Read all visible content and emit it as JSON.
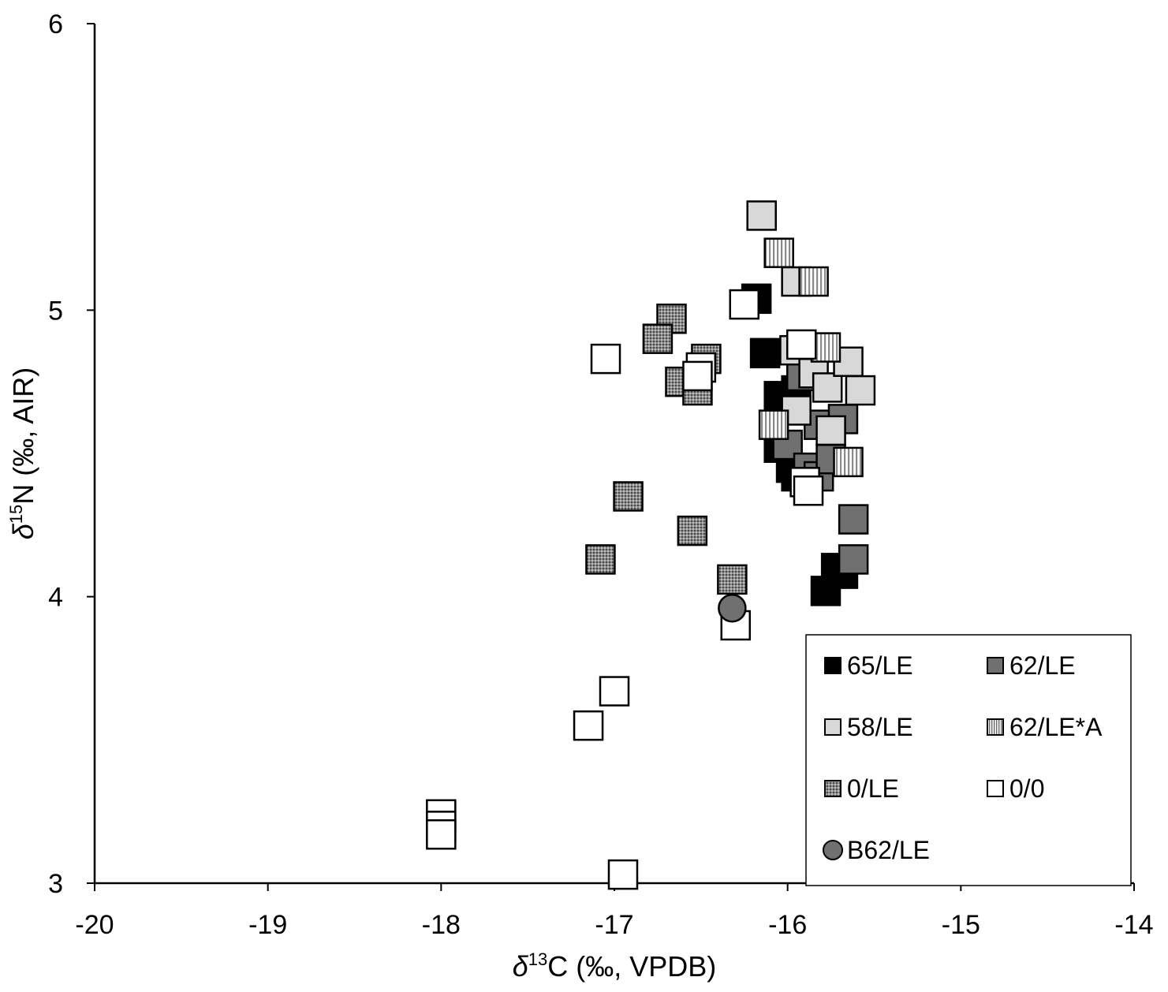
{
  "chart_data": {
    "type": "scatter",
    "title": "",
    "xlabel": {
      "italic": "δ",
      "sup": "13",
      "rest": "C (‰, VPDB)"
    },
    "ylabel": {
      "italic": "δ",
      "sup": "15",
      "rest": "N (‰, AIR)"
    },
    "xlim": [
      -20,
      -14
    ],
    "ylim": [
      3,
      6
    ],
    "xticks": [
      -20,
      -19,
      -18,
      -17,
      -16,
      -15,
      -14
    ],
    "yticks": [
      3,
      4,
      5,
      6
    ],
    "xtick_labels": [
      "-20",
      "-19",
      "-18",
      "-17",
      "-16",
      "-15",
      "-14"
    ],
    "ytick_labels": [
      "3",
      "4",
      "5",
      "6"
    ],
    "grid": false,
    "legend_position": "bottom-right",
    "series": [
      {
        "name": "65/LE",
        "marker": "square",
        "fill": "#000000",
        "points": [
          [
            -16.18,
            5.04
          ],
          [
            -16.13,
            4.85
          ],
          [
            -16.05,
            4.7
          ],
          [
            -15.95,
            4.72
          ],
          [
            -16.05,
            4.52
          ],
          [
            -15.98,
            4.45
          ],
          [
            -15.95,
            4.42
          ],
          [
            -15.72,
            4.1
          ],
          [
            -15.68,
            4.08
          ],
          [
            -15.78,
            4.02
          ]
        ]
      },
      {
        "name": "62/LE",
        "marker": "square",
        "fill": "#707070",
        "points": [
          [
            -15.92,
            4.77
          ],
          [
            -15.82,
            4.6
          ],
          [
            -15.68,
            4.62
          ],
          [
            -16.0,
            4.53
          ],
          [
            -15.88,
            4.45
          ],
          [
            -15.82,
            4.42
          ],
          [
            -15.75,
            4.48
          ],
          [
            -15.62,
            4.27
          ],
          [
            -15.62,
            4.13
          ]
        ]
      },
      {
        "name": "58/LE",
        "marker": "square",
        "fill": "#d8d8d8",
        "points": [
          [
            -16.15,
            5.33
          ],
          [
            -15.95,
            5.1
          ],
          [
            -15.96,
            4.86
          ],
          [
            -15.85,
            4.78
          ],
          [
            -15.77,
            4.73
          ],
          [
            -15.65,
            4.82
          ],
          [
            -15.58,
            4.72
          ],
          [
            -15.95,
            4.65
          ],
          [
            -15.75,
            4.58
          ]
        ]
      },
      {
        "name": "62/LE*A",
        "marker": "square",
        "fill": "url(#vstripes)",
        "points": [
          [
            -16.05,
            5.2
          ],
          [
            -15.85,
            5.1
          ],
          [
            -15.78,
            4.87
          ],
          [
            -16.08,
            4.6
          ],
          [
            -15.65,
            4.47
          ]
        ]
      },
      {
        "name": "0/LE",
        "marker": "square",
        "fill": "url(#dots)",
        "points": [
          [
            -16.67,
            4.97
          ],
          [
            -16.75,
            4.9
          ],
          [
            -16.47,
            4.83
          ],
          [
            -16.62,
            4.75
          ],
          [
            -16.52,
            4.72
          ],
          [
            -16.92,
            4.35
          ],
          [
            -16.55,
            4.23
          ],
          [
            -17.08,
            4.13
          ],
          [
            -16.32,
            4.06
          ]
        ]
      },
      {
        "name": "0/0",
        "marker": "square",
        "fill": "#ffffff",
        "points": [
          [
            -17.05,
            4.83
          ],
          [
            -16.5,
            4.8
          ],
          [
            -16.52,
            4.77
          ],
          [
            -16.25,
            5.02
          ],
          [
            -15.92,
            4.88
          ],
          [
            -15.9,
            4.4
          ],
          [
            -15.88,
            4.37
          ],
          [
            -16.3,
            3.9
          ],
          [
            -17.0,
            3.67
          ],
          [
            -17.15,
            3.55
          ],
          [
            -18.0,
            3.24
          ],
          [
            -18.0,
            3.2
          ],
          [
            -18.0,
            3.17
          ],
          [
            -16.95,
            3.03
          ]
        ]
      },
      {
        "name": "B62/LE",
        "marker": "circle",
        "fill": "#707070",
        "points": [
          [
            -16.32,
            3.96
          ]
        ]
      }
    ]
  },
  "legend": {
    "items": [
      {
        "label": "65/LE",
        "series": 0
      },
      {
        "label": "62/LE",
        "series": 1
      },
      {
        "label": "58/LE",
        "series": 2
      },
      {
        "label": "62/LE*A",
        "series": 3
      },
      {
        "label": "0/LE",
        "series": 4
      },
      {
        "label": "0/0",
        "series": 5
      },
      {
        "label": "B62/LE",
        "series": 6
      }
    ]
  }
}
